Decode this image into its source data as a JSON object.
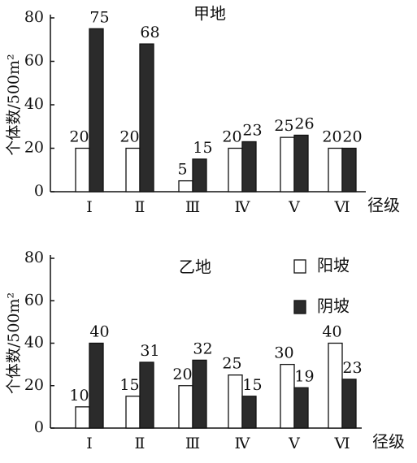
{
  "chart_data": [
    {
      "type": "bar",
      "title": "甲地",
      "y_label": "个体数/500m²",
      "x_label": "径级",
      "categories": [
        "Ⅰ",
        "Ⅱ",
        "Ⅲ",
        "Ⅳ",
        "Ⅴ",
        "Ⅵ"
      ],
      "series": [
        {
          "color": "#ffffff",
          "values": [
            20,
            20,
            5,
            20,
            25,
            20
          ]
        },
        {
          "color": "#2b2b2b",
          "values": [
            75,
            68,
            15,
            23,
            26,
            20
          ]
        }
      ],
      "ylim": [
        0,
        80
      ],
      "yticks": [
        0,
        20,
        40,
        60,
        80
      ]
    },
    {
      "type": "bar",
      "title": "乙地",
      "y_label": "个体数/500m²",
      "x_label": "径级",
      "categories": [
        "Ⅰ",
        "Ⅱ",
        "Ⅲ",
        "Ⅳ",
        "Ⅴ",
        "Ⅵ"
      ],
      "series": [
        {
          "name": "阳坡",
          "color": "#ffffff",
          "values": [
            10,
            15,
            20,
            25,
            30,
            40
          ]
        },
        {
          "name": "阴坡",
          "color": "#2b2b2b",
          "values": [
            40,
            31,
            32,
            15,
            19,
            23
          ]
        }
      ],
      "ylim": [
        0,
        80
      ],
      "yticks": [
        0,
        20,
        40,
        60,
        80
      ],
      "legend": "top-right"
    }
  ]
}
